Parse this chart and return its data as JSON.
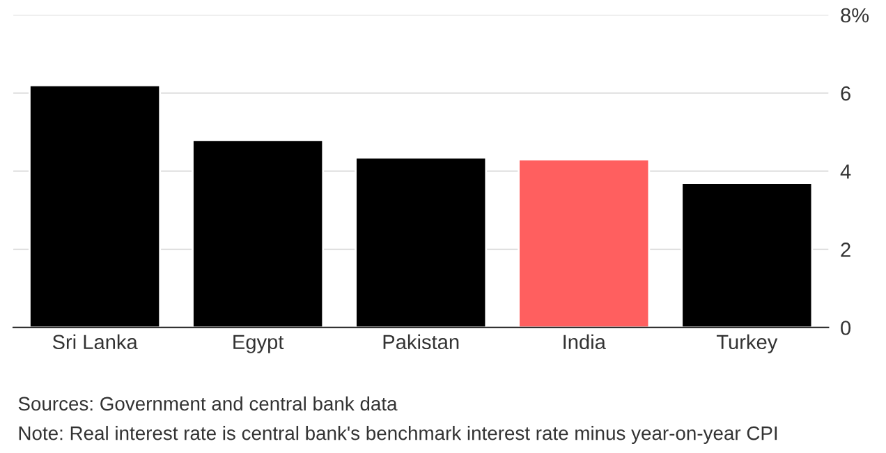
{
  "chart_data": {
    "type": "bar",
    "categories": [
      "Sri Lanka",
      "Egypt",
      "Pakistan",
      "India",
      "Turkey"
    ],
    "values": [
      6.2,
      4.8,
      4.35,
      4.3,
      3.7
    ],
    "colors": [
      "#000000",
      "#000000",
      "#000000",
      "#ff5f5f",
      "#000000"
    ],
    "ylim": [
      0,
      8
    ],
    "yticks": [
      0,
      2,
      4,
      6,
      {
        "value": 8,
        "label": "8%"
      }
    ],
    "grid": "y",
    "annotations": [
      "Sources: Government and central bank data",
      "Note: Real interest rate is central bank's benchmark interest rate minus year-on-year CPI"
    ]
  }
}
